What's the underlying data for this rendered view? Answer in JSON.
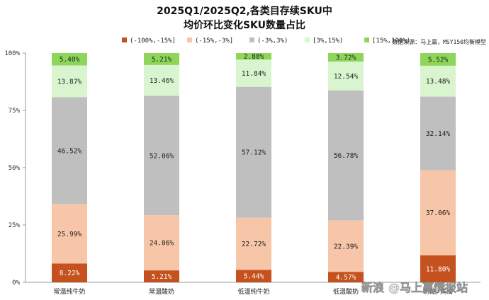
{
  "chart_data": {
    "type": "bar",
    "stacked": true,
    "title_lines": [
      "2025Q1/2025Q2,各类目存续SKU中",
      "均价环比变化SKU数量占比"
    ],
    "source": "数据来源：马上赢，MSY150均衡模型",
    "categories": [
      "常温纯牛奶",
      "常温酸奶",
      "低温纯牛奶",
      "低温酸奶",
      "奶酪/黄油"
    ],
    "ylim": [
      0,
      100
    ],
    "yticks": [
      "0%",
      "25%",
      "50%",
      "75%",
      "100%"
    ],
    "series": [
      {
        "name": "(-100%,-15%]",
        "color": "#C4511E",
        "values": [
          8.22,
          5.21,
          5.44,
          4.57,
          11.8
        ],
        "labels": [
          "8.22%",
          "5.21%",
          "5.44%",
          "4.57%",
          "11.80%"
        ]
      },
      {
        "name": "(-15%,-3%]",
        "color": "#F7C6A8",
        "values": [
          25.99,
          24.06,
          22.72,
          22.39,
          37.06
        ],
        "labels": [
          "25.99%",
          "24.06%",
          "22.72%",
          "22.39%",
          "37.06%"
        ]
      },
      {
        "name": "(-3%,3%)",
        "color": "#BFBFBF",
        "values": [
          46.52,
          52.06,
          57.12,
          56.78,
          32.14
        ],
        "labels": [
          "46.52%",
          "52.06%",
          "57.12%",
          "56.78%",
          "32.14%"
        ]
      },
      {
        "name": "[3%,15%)",
        "color": "#D9F5D0",
        "values": [
          13.87,
          13.46,
          11.84,
          12.54,
          13.48
        ],
        "labels": [
          "13.87%",
          "13.46%",
          "11.84%",
          "12.54%",
          "13.48%"
        ]
      },
      {
        "name": "[15%,100%)",
        "color": "#8ED65A",
        "values": [
          5.4,
          5.21,
          2.88,
          3.72,
          5.52
        ],
        "labels": [
          "5.40%",
          "5.21%",
          "2.88%",
          "3.72%",
          "5.52%"
        ]
      }
    ]
  },
  "watermark": {
    "brand": "新浪",
    "handle": "@马上赢情报站"
  }
}
